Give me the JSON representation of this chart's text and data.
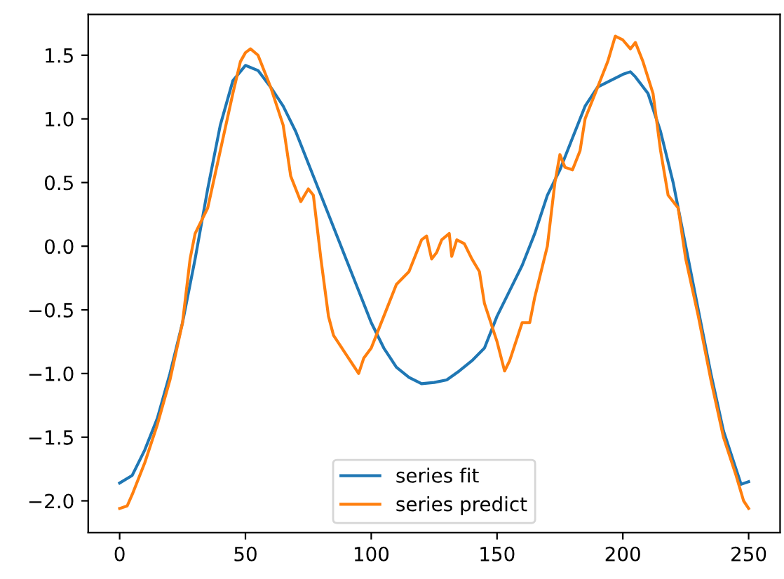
{
  "chart_data": {
    "type": "line",
    "series": [
      {
        "name": "series fit",
        "color": "#1f77b4",
        "x": [
          0,
          5,
          10,
          15,
          20,
          25,
          30,
          35,
          40,
          45,
          50,
          55,
          60,
          65,
          70,
          75,
          80,
          85,
          90,
          95,
          100,
          105,
          110,
          115,
          120,
          125,
          130,
          135,
          140,
          145,
          150,
          155,
          160,
          165,
          170,
          175,
          180,
          185,
          190,
          195,
          200,
          203,
          205,
          210,
          215,
          220,
          225,
          230,
          235,
          240,
          245,
          247,
          250
        ],
        "values": [
          -1.86,
          -1.8,
          -1.6,
          -1.35,
          -1.0,
          -0.6,
          -0.1,
          0.45,
          0.95,
          1.3,
          1.42,
          1.38,
          1.25,
          1.1,
          0.9,
          0.65,
          0.4,
          0.15,
          -0.1,
          -0.35,
          -0.6,
          -0.8,
          -0.95,
          -1.03,
          -1.08,
          -1.07,
          -1.05,
          -0.98,
          -0.9,
          -0.8,
          -0.55,
          -0.35,
          -0.15,
          0.1,
          0.4,
          0.6,
          0.85,
          1.1,
          1.25,
          1.3,
          1.35,
          1.37,
          1.33,
          1.2,
          0.9,
          0.5,
          0.0,
          -0.5,
          -1.0,
          -1.45,
          -1.75,
          -1.87,
          -1.85
        ]
      },
      {
        "name": "series predict",
        "color": "#ff7f0e",
        "x": [
          0,
          3,
          5,
          10,
          15,
          20,
          25,
          28,
          30,
          35,
          40,
          45,
          48,
          50,
          52,
          55,
          60,
          65,
          68,
          72,
          75,
          77,
          80,
          83,
          85,
          90,
          95,
          97,
          100,
          105,
          110,
          115,
          120,
          122,
          124,
          126,
          128,
          131,
          132,
          134,
          137,
          140,
          143,
          145,
          150,
          153,
          155,
          160,
          163,
          165,
          170,
          173,
          175,
          177,
          180,
          183,
          185,
          190,
          194,
          197,
          200,
          203,
          205,
          208,
          212,
          215,
          218,
          222,
          225,
          230,
          235,
          240,
          245,
          248,
          250
        ],
        "values": [
          -2.06,
          -2.04,
          -1.95,
          -1.7,
          -1.4,
          -1.05,
          -0.6,
          -0.1,
          0.1,
          0.3,
          0.75,
          1.2,
          1.45,
          1.52,
          1.55,
          1.5,
          1.25,
          0.95,
          0.55,
          0.35,
          0.45,
          0.4,
          -0.1,
          -0.55,
          -0.7,
          -0.85,
          -1.0,
          -0.88,
          -0.8,
          -0.55,
          -0.3,
          -0.2,
          0.05,
          0.08,
          -0.1,
          -0.05,
          0.05,
          0.1,
          -0.08,
          0.05,
          0.02,
          -0.1,
          -0.2,
          -0.45,
          -0.75,
          -0.98,
          -0.9,
          -0.6,
          -0.6,
          -0.4,
          0.0,
          0.5,
          0.72,
          0.62,
          0.6,
          0.75,
          1.0,
          1.25,
          1.45,
          1.65,
          1.62,
          1.55,
          1.6,
          1.45,
          1.2,
          0.75,
          0.4,
          0.3,
          -0.1,
          -0.55,
          -1.05,
          -1.5,
          -1.8,
          -2.0,
          -2.06
        ]
      }
    ],
    "xlim": [
      -12.5,
      262.5
    ],
    "ylim": [
      -2.25,
      1.82
    ],
    "xticks": [
      0,
      50,
      100,
      150,
      200,
      250
    ],
    "yticks": [
      {
        "value": -2.0,
        "label": "−2.0"
      },
      {
        "value": -1.5,
        "label": "−1.5"
      },
      {
        "value": -1.0,
        "label": "−1.0"
      },
      {
        "value": -0.5,
        "label": "−0.5"
      },
      {
        "value": 0.0,
        "label": "0.0"
      },
      {
        "value": 0.5,
        "label": "0.5"
      },
      {
        "value": 1.0,
        "label": "1.0"
      },
      {
        "value": 1.5,
        "label": "1.5"
      }
    ],
    "grid": false,
    "legend": "bottom",
    "marker": "none",
    "line_style": "solid"
  }
}
